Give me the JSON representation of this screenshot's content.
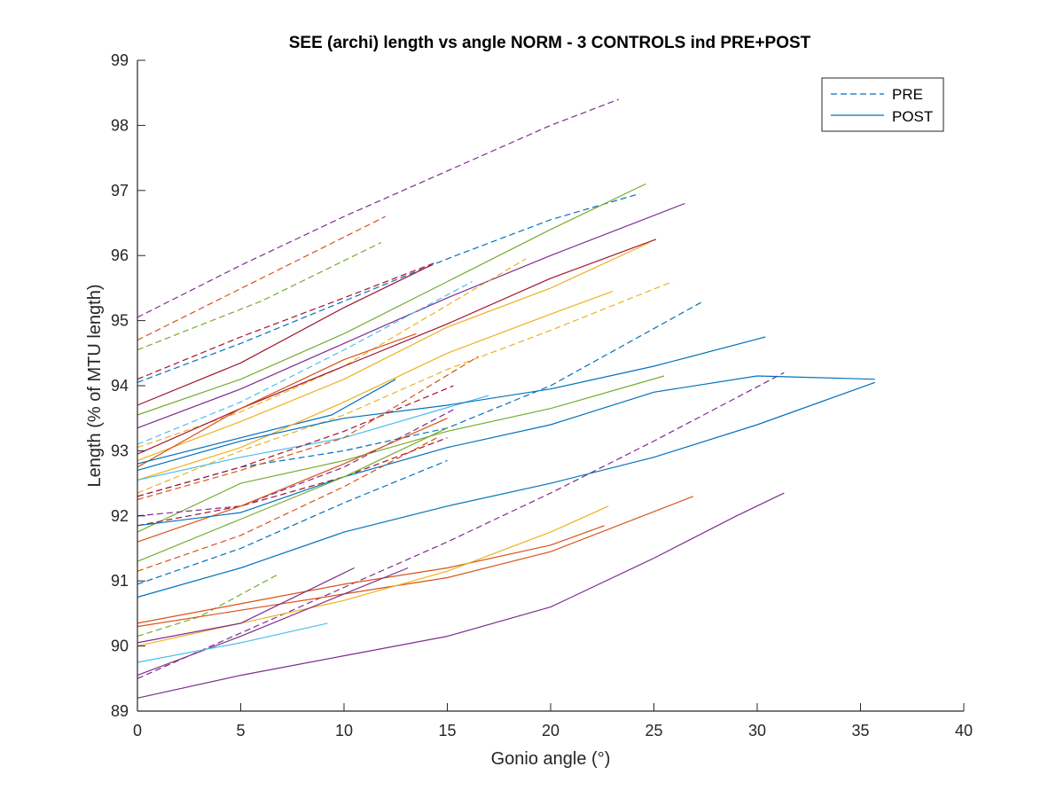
{
  "chart_data": {
    "type": "line",
    "title": "SEE (archi) length vs angle NORM - 3 CONTROLS ind PRE+POST",
    "xlabel": "Gonio angle (°)",
    "ylabel": "Length (% of MTU length)",
    "xlim": [
      0,
      40
    ],
    "ylim": [
      89,
      99
    ],
    "xticks": [
      "0",
      "5",
      "10",
      "15",
      "20",
      "25",
      "30",
      "35",
      "40"
    ],
    "yticks": [
      "89",
      "90",
      "91",
      "92",
      "93",
      "94",
      "95",
      "96",
      "97",
      "98",
      "99"
    ],
    "grid": false,
    "legend": {
      "placement": "top-right",
      "entries": [
        {
          "label": "PRE",
          "style": "dashed"
        },
        {
          "label": "POST",
          "style": "solid"
        }
      ]
    },
    "colors": {
      "blue": "#0072BD",
      "orange": "#D95319",
      "yellow": "#EDB120",
      "purple": "#7E2F8E",
      "green": "#77AC30",
      "cyan": "#4DBEEE",
      "red": "#A2142F"
    },
    "series": [
      {
        "color": "purple",
        "style": "dashed",
        "x": [
          0,
          5,
          10,
          15,
          20,
          23.3
        ],
        "y": [
          95.05,
          95.85,
          96.6,
          97.3,
          98.0,
          98.4
        ]
      },
      {
        "color": "orange",
        "style": "dashed",
        "x": [
          0,
          6,
          12
        ],
        "y": [
          94.7,
          95.65,
          96.6
        ]
      },
      {
        "color": "green",
        "style": "dashed",
        "x": [
          0,
          6,
          11.8
        ],
        "y": [
          94.55,
          95.3,
          96.2
        ]
      },
      {
        "color": "blue",
        "style": "dashed",
        "x": [
          0,
          5,
          10,
          15,
          20,
          24.3
        ],
        "y": [
          94.05,
          94.65,
          95.3,
          95.95,
          96.55,
          96.95
        ]
      },
      {
        "color": "red",
        "style": "dashed",
        "x": [
          0,
          5,
          10,
          14.5
        ],
        "y": [
          94.1,
          94.75,
          95.35,
          95.9
        ]
      },
      {
        "color": "red",
        "style": "solid",
        "x": [
          0,
          5,
          10,
          14.2
        ],
        "y": [
          93.7,
          94.35,
          95.2,
          95.85
        ]
      },
      {
        "color": "green",
        "style": "solid",
        "x": [
          0,
          5,
          10,
          15,
          20,
          24.6
        ],
        "y": [
          93.55,
          94.1,
          94.8,
          95.6,
          96.4,
          97.1
        ]
      },
      {
        "color": "purple",
        "style": "solid",
        "x": [
          0,
          5,
          10,
          15,
          20,
          26.5
        ],
        "y": [
          93.35,
          93.95,
          94.65,
          95.35,
          96.0,
          96.8
        ]
      },
      {
        "color": "cyan",
        "style": "dashed",
        "x": [
          0,
          5,
          10,
          16.2
        ],
        "y": [
          93.1,
          93.75,
          94.55,
          95.6
        ]
      },
      {
        "color": "yellow",
        "style": "dashed",
        "x": [
          0,
          5,
          10,
          18.8
        ],
        "y": [
          93.05,
          93.6,
          94.3,
          95.95
        ]
      },
      {
        "color": "red",
        "style": "solid",
        "x": [
          0,
          5,
          10,
          15,
          20,
          25.1
        ],
        "y": [
          92.95,
          93.65,
          94.3,
          94.95,
          95.65,
          96.25
        ]
      },
      {
        "color": "yellow",
        "style": "solid",
        "x": [
          0,
          5,
          10,
          15,
          20,
          24.8
        ],
        "y": [
          92.85,
          93.45,
          94.1,
          94.9,
          95.5,
          96.2
        ]
      },
      {
        "color": "orange",
        "style": "solid",
        "x": [
          0,
          5,
          10,
          13.5
        ],
        "y": [
          92.75,
          93.65,
          94.4,
          94.8
        ]
      },
      {
        "color": "blue",
        "style": "solid",
        "x": [
          0,
          5,
          9.4,
          12.5
        ],
        "y": [
          92.8,
          93.2,
          93.55,
          94.1
        ]
      },
      {
        "color": "yellow",
        "style": "solid",
        "x": [
          0,
          5,
          10,
          15,
          20,
          23
        ],
        "y": [
          92.55,
          93.05,
          93.75,
          94.5,
          95.1,
          95.45
        ]
      },
      {
        "color": "yellow",
        "style": "dashed",
        "x": [
          0,
          5,
          10,
          15,
          20,
          25.9
        ],
        "y": [
          92.35,
          93.0,
          93.55,
          94.25,
          94.85,
          95.6
        ]
      },
      {
        "color": "cyan",
        "style": "solid",
        "x": [
          0,
          5,
          10,
          17
        ],
        "y": [
          92.55,
          92.9,
          93.2,
          93.85
        ]
      },
      {
        "color": "blue",
        "style": "solid",
        "x": [
          0,
          5,
          10,
          15,
          20,
          25,
          30.4
        ],
        "y": [
          92.7,
          93.15,
          93.5,
          93.7,
          93.95,
          94.3,
          94.75
        ]
      },
      {
        "color": "blue",
        "style": "dashed",
        "x": [
          0,
          5,
          10,
          15,
          20,
          27.4
        ],
        "y": [
          92.3,
          92.75,
          93.0,
          93.35,
          94.0,
          95.3
        ]
      },
      {
        "color": "red",
        "style": "dashed",
        "x": [
          0,
          5,
          10,
          15.3
        ],
        "y": [
          92.3,
          92.75,
          93.3,
          94.0
        ]
      },
      {
        "color": "orange",
        "style": "dashed",
        "x": [
          0,
          5,
          10,
          16.5
        ],
        "y": [
          92.25,
          92.7,
          93.2,
          94.45
        ]
      },
      {
        "color": "green",
        "style": "solid",
        "x": [
          0,
          5,
          10,
          15,
          20,
          25.5
        ],
        "y": [
          91.75,
          92.5,
          92.85,
          93.3,
          93.65,
          94.15
        ]
      },
      {
        "color": "purple",
        "style": "dashed",
        "x": [
          0,
          5,
          10,
          15.4
        ],
        "y": [
          92.0,
          92.15,
          92.75,
          93.65
        ]
      },
      {
        "color": "red",
        "style": "dashed",
        "x": [
          0,
          5,
          10,
          15
        ],
        "y": [
          91.85,
          92.15,
          92.6,
          93.2
        ]
      },
      {
        "color": "orange",
        "style": "solid",
        "x": [
          0,
          5,
          10,
          15
        ],
        "y": [
          91.6,
          92.15,
          92.8,
          93.5
        ]
      },
      {
        "color": "blue",
        "style": "solid",
        "x": [
          0,
          5,
          10,
          15,
          20,
          25,
          30,
          35.7
        ],
        "y": [
          91.85,
          92.05,
          92.6,
          93.05,
          93.4,
          93.9,
          94.15,
          94.1
        ]
      },
      {
        "color": "green",
        "style": "solid",
        "x": [
          0,
          5,
          10,
          15
        ],
        "y": [
          91.3,
          91.95,
          92.6,
          93.35
        ]
      },
      {
        "color": "orange",
        "style": "dashed",
        "x": [
          0,
          5,
          10,
          14.5
        ],
        "y": [
          91.15,
          91.7,
          92.45,
          93.2
        ]
      },
      {
        "color": "blue",
        "style": "dashed",
        "x": [
          0,
          5,
          10,
          15
        ],
        "y": [
          90.95,
          91.5,
          92.2,
          92.85
        ]
      },
      {
        "color": "blue",
        "style": "solid",
        "x": [
          0,
          5,
          10,
          15,
          20,
          25,
          30,
          35.7
        ],
        "y": [
          90.75,
          91.2,
          91.75,
          92.15,
          92.5,
          92.9,
          93.4,
          94.05
        ]
      },
      {
        "color": "purple",
        "style": "dashed",
        "x": [
          0,
          5,
          10,
          15,
          20,
          25,
          31.3
        ],
        "y": [
          89.5,
          90.2,
          90.9,
          91.6,
          92.35,
          93.15,
          94.2
        ]
      },
      {
        "color": "green",
        "style": "dashed",
        "x": [
          0,
          3,
          6.8
        ],
        "y": [
          90.15,
          90.45,
          91.1
        ]
      },
      {
        "color": "orange",
        "style": "solid",
        "x": [
          0,
          5,
          10,
          15,
          20,
          22.6
        ],
        "y": [
          90.35,
          90.65,
          90.95,
          91.2,
          91.55,
          91.85
        ]
      },
      {
        "color": "orange",
        "style": "solid",
        "x": [
          0,
          5,
          10,
          15,
          20,
          26.9
        ],
        "y": [
          90.3,
          90.55,
          90.8,
          91.05,
          91.45,
          92.3
        ]
      },
      {
        "color": "yellow",
        "style": "solid",
        "x": [
          0,
          5,
          10,
          15,
          20,
          22.8
        ],
        "y": [
          90.0,
          90.35,
          90.7,
          91.15,
          91.75,
          92.15
        ]
      },
      {
        "color": "purple",
        "style": "solid",
        "x": [
          0,
          5,
          10.5
        ],
        "y": [
          90.05,
          90.35,
          91.2
        ]
      },
      {
        "color": "purple",
        "style": "solid",
        "x": [
          0,
          5,
          10,
          13.1
        ],
        "y": [
          89.55,
          90.15,
          90.8,
          91.2
        ]
      },
      {
        "color": "cyan",
        "style": "solid",
        "x": [
          0,
          5,
          9.2
        ],
        "y": [
          89.75,
          90.05,
          90.35
        ]
      },
      {
        "color": "purple",
        "style": "solid",
        "x": [
          0,
          5,
          10,
          15,
          20,
          25,
          29,
          31.3
        ],
        "y": [
          89.2,
          89.55,
          89.85,
          90.15,
          90.6,
          91.35,
          92.0,
          92.35
        ]
      }
    ]
  }
}
